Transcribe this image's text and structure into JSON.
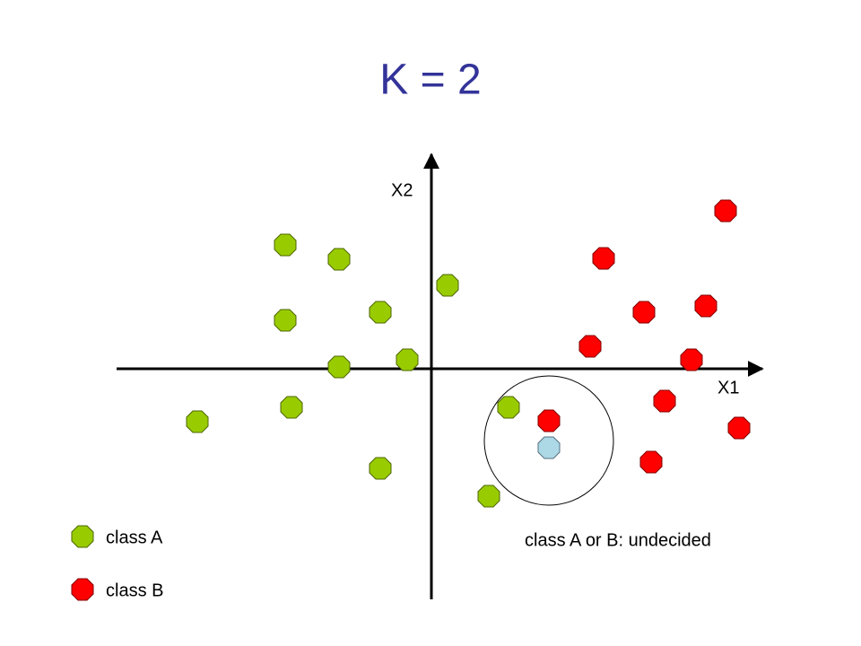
{
  "title": "K = 2",
  "axes": {
    "x_label": "X1",
    "y_label": "X2"
  },
  "annotation": "class A or B: undecided",
  "legend": [
    {
      "label": "class A"
    },
    {
      "label": "class B"
    }
  ]
}
